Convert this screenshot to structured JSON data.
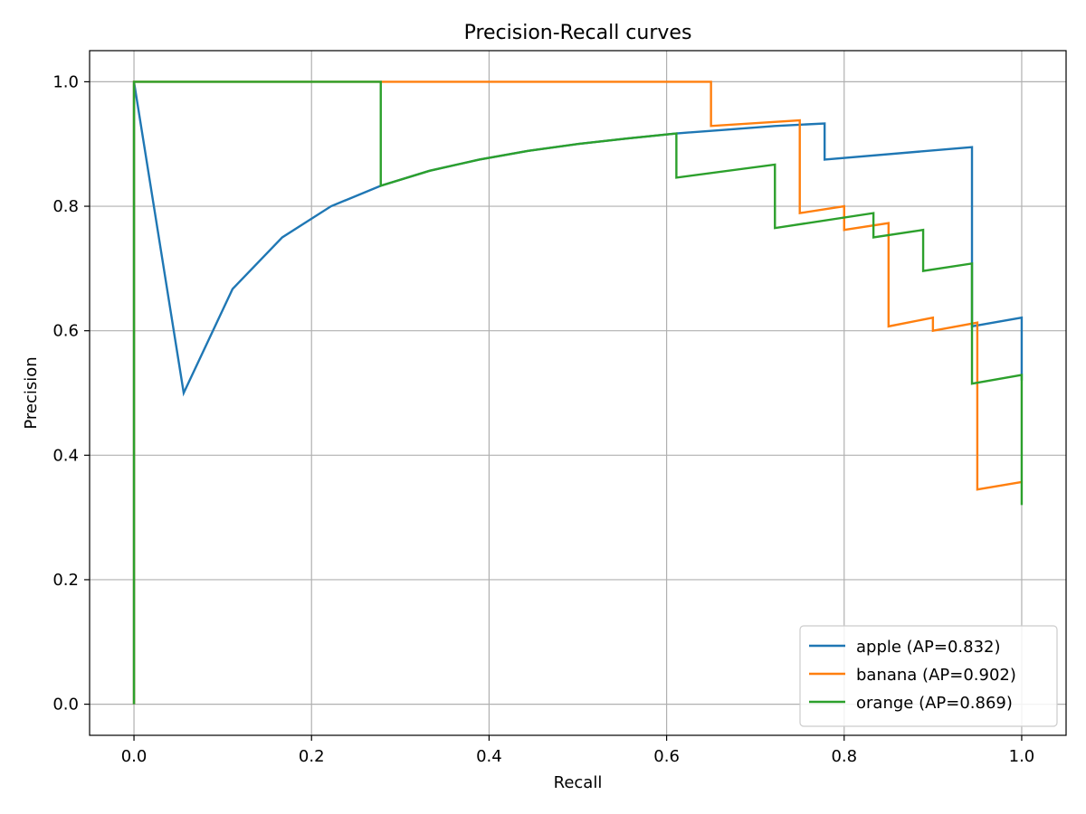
{
  "chart_data": {
    "type": "line",
    "title": "Precision-Recall curves",
    "xlabel": "Recall",
    "ylabel": "Precision",
    "xlim": [
      -0.05,
      1.05
    ],
    "ylim": [
      -0.05,
      1.05
    ],
    "xticks": [
      0.0,
      0.2,
      0.4,
      0.6,
      0.8,
      1.0
    ],
    "xtick_labels": [
      "0.0",
      "0.2",
      "0.4",
      "0.6",
      "0.8",
      "1.0"
    ],
    "yticks": [
      0.0,
      0.2,
      0.4,
      0.6,
      0.8,
      1.0
    ],
    "ytick_labels": [
      "0.0",
      "0.2",
      "0.4",
      "0.6",
      "0.8",
      "1.0"
    ],
    "grid": true,
    "legend_position": "lower-right",
    "series": [
      {
        "name": "apple (AP=0.832)",
        "color": "#1f77b4",
        "x": [
          0.0,
          0.0,
          0.056,
          0.111,
          0.167,
          0.222,
          0.278,
          0.333,
          0.389,
          0.444,
          0.5,
          0.556,
          0.611,
          0.667,
          0.722,
          0.778,
          0.778,
          0.944,
          0.944,
          1.0,
          1.0
        ],
        "y": [
          0.0,
          1.0,
          0.5,
          0.667,
          0.75,
          0.8,
          0.833,
          0.857,
          0.875,
          0.889,
          0.9,
          0.909,
          0.917,
          0.923,
          0.929,
          0.933,
          0.875,
          0.895,
          0.607,
          0.621,
          0.52
        ]
      },
      {
        "name": "banana (AP=0.902)",
        "color": "#ff7f0e",
        "x": [
          0.0,
          0.0,
          0.65,
          0.65,
          0.75,
          0.75,
          0.8,
          0.8,
          0.85,
          0.85,
          0.9,
          0.9,
          0.95,
          0.95,
          1.0
        ],
        "y": [
          0.0,
          1.0,
          1.0,
          0.929,
          0.938,
          0.789,
          0.8,
          0.762,
          0.773,
          0.607,
          0.621,
          0.6,
          0.613,
          0.345,
          0.357
        ]
      },
      {
        "name": "orange (AP=0.869)",
        "color": "#2ca02c",
        "x": [
          0.0,
          0.0,
          0.278,
          0.278,
          0.333,
          0.389,
          0.444,
          0.5,
          0.556,
          0.611,
          0.611,
          0.722,
          0.722,
          0.833,
          0.833,
          0.889,
          0.889,
          0.944,
          0.944,
          1.0,
          1.0
        ],
        "y": [
          0.0,
          1.0,
          1.0,
          0.833,
          0.857,
          0.875,
          0.889,
          0.9,
          0.909,
          0.917,
          0.846,
          0.867,
          0.765,
          0.789,
          0.75,
          0.762,
          0.696,
          0.708,
          0.515,
          0.529,
          0.32
        ]
      }
    ]
  }
}
